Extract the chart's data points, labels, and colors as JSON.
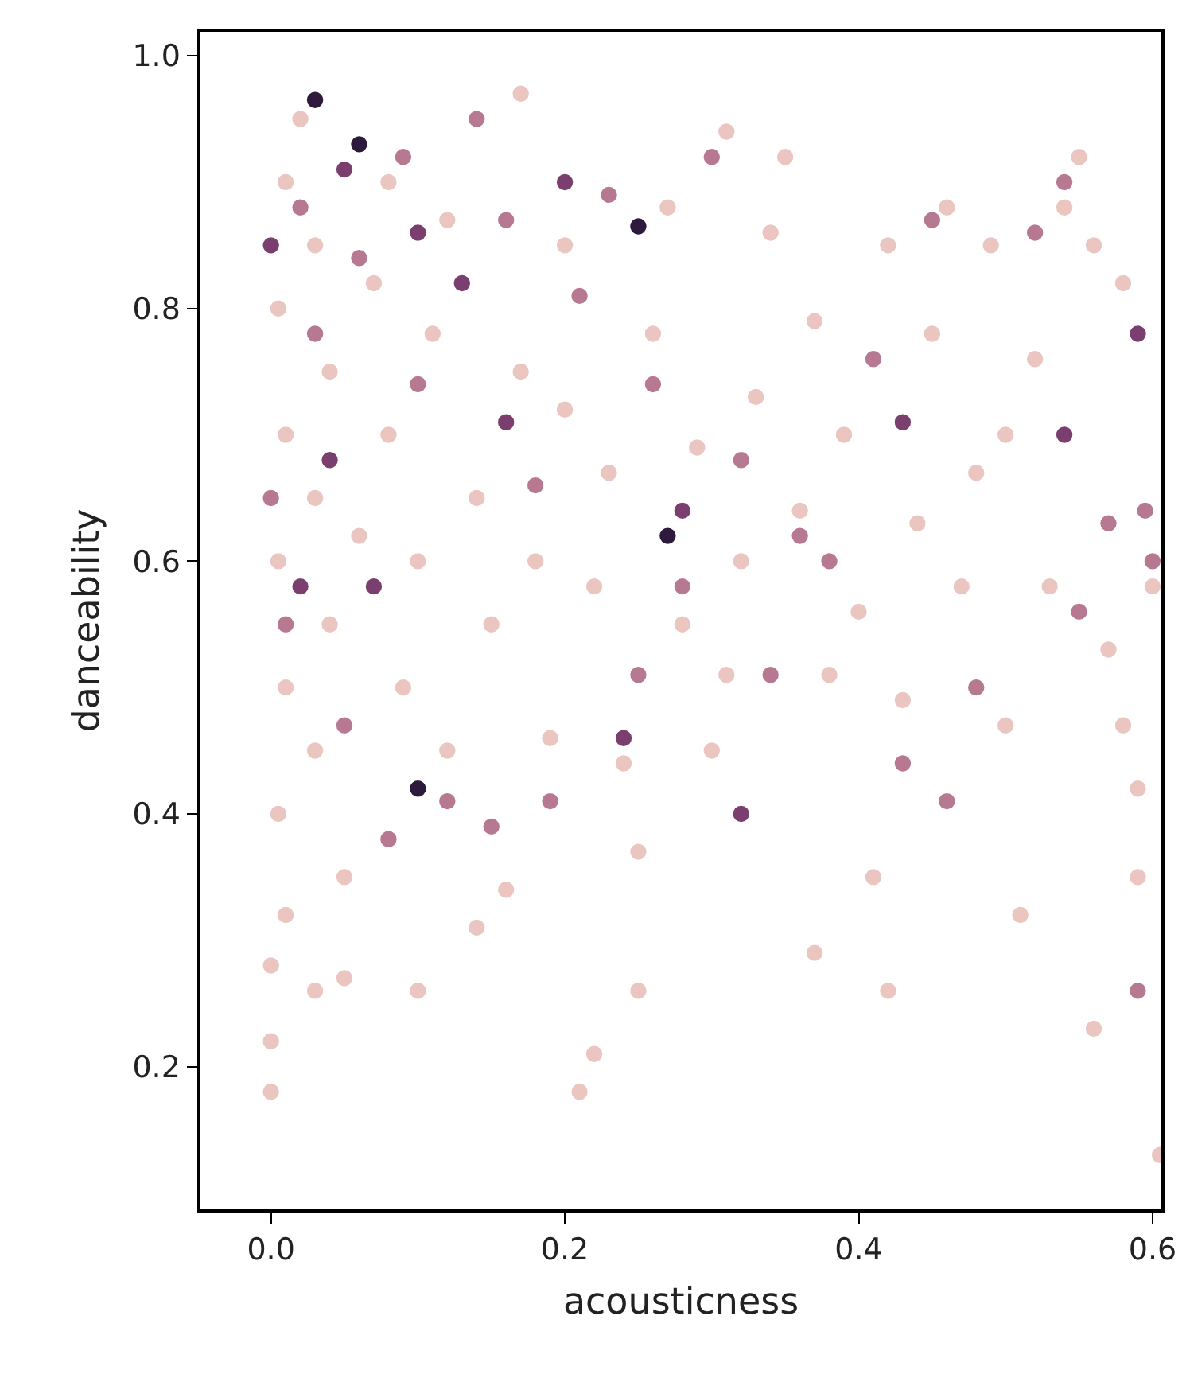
{
  "chart_data": {
    "type": "scatter",
    "xlabel": "acousticness",
    "ylabel": "danceability",
    "marker": "circle",
    "xlim": [
      -0.048,
      0.606
    ],
    "ylim": [
      0.087,
      1.019
    ],
    "xticks": [
      {
        "value": 0,
        "label": "0.0"
      },
      0.2,
      0.4,
      0.6
    ],
    "yticks": [
      0.2,
      0.4,
      0.6,
      0.8,
      {
        "value": 1,
        "label": "1.0"
      }
    ],
    "series": [
      {
        "color": "#ebc5c0",
        "x": [
          0.0,
          0.0,
          0.0,
          0.01,
          0.005,
          0.01,
          0.005,
          0.01,
          0.005,
          0.01,
          0.02,
          0.03,
          0.04,
          0.03,
          0.04,
          0.03,
          0.03,
          0.05,
          0.05,
          0.06,
          0.07,
          0.08,
          0.08,
          0.09,
          0.1,
          0.1,
          0.11,
          0.12,
          0.12,
          0.14,
          0.14,
          0.15,
          0.16,
          0.17,
          0.17,
          0.18,
          0.19,
          0.2,
          0.2,
          0.21,
          0.22,
          0.22,
          0.23,
          0.24,
          0.25,
          0.25,
          0.26,
          0.27,
          0.28,
          0.29,
          0.3,
          0.31,
          0.31,
          0.32,
          0.33,
          0.34,
          0.35,
          0.36,
          0.37,
          0.37,
          0.38,
          0.39,
          0.4,
          0.41,
          0.42,
          0.42,
          0.43,
          0.44,
          0.45,
          0.46,
          0.47,
          0.48,
          0.49,
          0.5,
          0.5,
          0.51,
          0.52,
          0.53,
          0.54,
          0.55,
          0.56,
          0.56,
          0.57,
          0.58,
          0.58,
          0.59,
          0.59,
          0.6,
          0.605
        ],
        "values": [
          0.18,
          0.22,
          0.28,
          0.32,
          0.4,
          0.5,
          0.6,
          0.7,
          0.8,
          0.9,
          0.95,
          0.85,
          0.75,
          0.65,
          0.55,
          0.45,
          0.26,
          0.27,
          0.35,
          0.62,
          0.82,
          0.9,
          0.7,
          0.5,
          0.26,
          0.6,
          0.78,
          0.45,
          0.87,
          0.31,
          0.65,
          0.55,
          0.34,
          0.97,
          0.75,
          0.6,
          0.46,
          0.85,
          0.72,
          0.18,
          0.21,
          0.58,
          0.67,
          0.44,
          0.26,
          0.37,
          0.78,
          0.88,
          0.55,
          0.69,
          0.45,
          0.51,
          0.94,
          0.6,
          0.73,
          0.86,
          0.92,
          0.64,
          0.29,
          0.79,
          0.51,
          0.7,
          0.56,
          0.35,
          0.26,
          0.85,
          0.49,
          0.63,
          0.78,
          0.88,
          0.58,
          0.67,
          0.85,
          0.47,
          0.7,
          0.32,
          0.76,
          0.58,
          0.88,
          0.92,
          0.23,
          0.85,
          0.53,
          0.82,
          0.47,
          0.35,
          0.42,
          0.58,
          0.13
        ]
      },
      {
        "color": "#b77892",
        "x": [
          0.0,
          0.01,
          0.02,
          0.03,
          0.05,
          0.06,
          0.08,
          0.09,
          0.1,
          0.12,
          0.14,
          0.15,
          0.16,
          0.18,
          0.19,
          0.21,
          0.23,
          0.25,
          0.26,
          0.28,
          0.3,
          0.32,
          0.34,
          0.36,
          0.38,
          0.41,
          0.43,
          0.45,
          0.46,
          0.48,
          0.52,
          0.54,
          0.55,
          0.57,
          0.6,
          0.595,
          0.59
        ],
        "values": [
          0.65,
          0.55,
          0.88,
          0.78,
          0.47,
          0.84,
          0.38,
          0.92,
          0.74,
          0.41,
          0.95,
          0.39,
          0.87,
          0.66,
          0.41,
          0.81,
          0.89,
          0.51,
          0.74,
          0.58,
          0.92,
          0.68,
          0.51,
          0.62,
          0.6,
          0.76,
          0.44,
          0.87,
          0.41,
          0.5,
          0.86,
          0.9,
          0.56,
          0.63,
          0.6,
          0.64,
          0.26
        ]
      },
      {
        "color": "#7a3f6e",
        "x": [
          0.0,
          0.02,
          0.04,
          0.05,
          0.07,
          0.1,
          0.13,
          0.16,
          0.2,
          0.24,
          0.28,
          0.32,
          0.43,
          0.54,
          0.59
        ],
        "values": [
          0.85,
          0.58,
          0.68,
          0.91,
          0.58,
          0.86,
          0.82,
          0.71,
          0.9,
          0.46,
          0.64,
          0.4,
          0.71,
          0.7,
          0.78
        ]
      },
      {
        "color": "#2d1a3d",
        "x": [
          0.03,
          0.1,
          0.25,
          0.27,
          0.06
        ],
        "values": [
          0.965,
          0.42,
          0.865,
          0.62,
          0.93
        ]
      }
    ]
  }
}
